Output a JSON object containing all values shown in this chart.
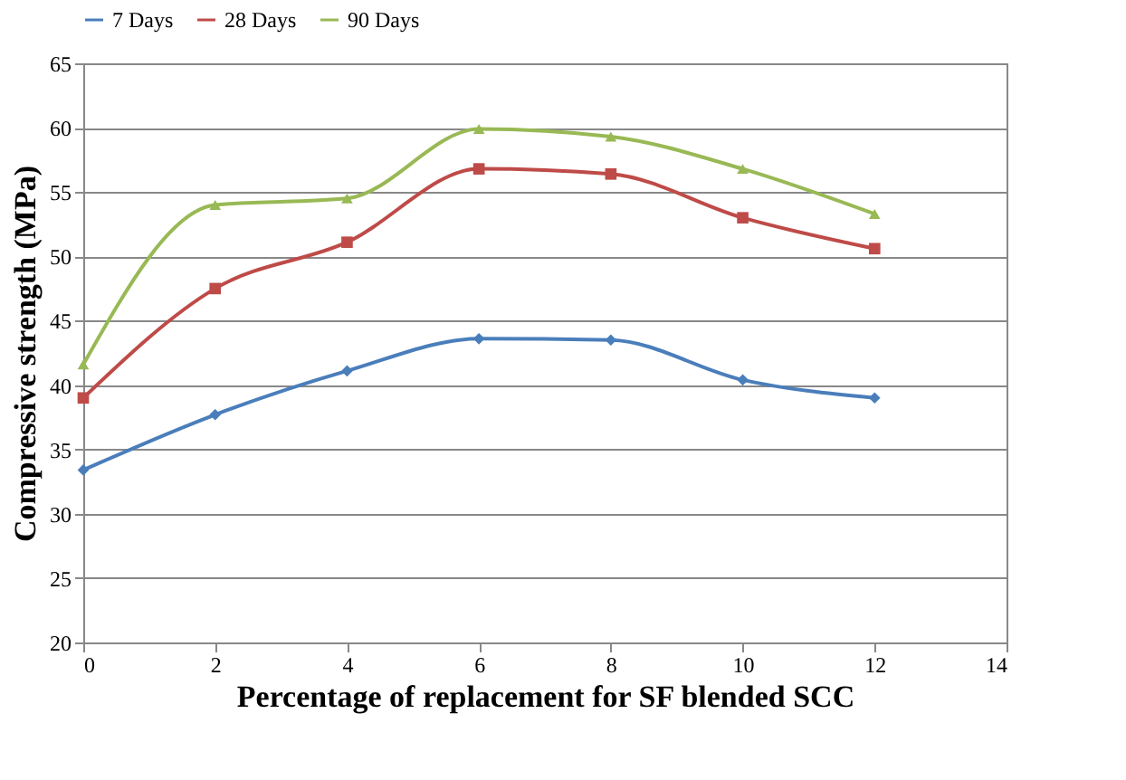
{
  "chart_data": {
    "type": "line",
    "xlabel": "Percentage of replacement for SF blended SCC",
    "ylabel": "Compressive strength (MPa)",
    "x": [
      0,
      2,
      4,
      6,
      8,
      10,
      12
    ],
    "series": [
      {
        "name": "7 Days",
        "color": "#4a7ebb",
        "marker": "diamond",
        "values": [
          33.4,
          37.7,
          41.1,
          43.6,
          43.5,
          40.4,
          39.0
        ]
      },
      {
        "name": "28 Days",
        "color": "#be4b48",
        "marker": "square",
        "values": [
          39.0,
          47.5,
          51.1,
          56.8,
          56.4,
          53.0,
          50.6
        ]
      },
      {
        "name": "90 Days",
        "color": "#98b954",
        "marker": "triangle",
        "values": [
          41.6,
          54.0,
          54.5,
          59.9,
          59.3,
          56.8,
          53.3
        ]
      }
    ],
    "xlim": [
      0,
      14
    ],
    "xticks": [
      0,
      2,
      4,
      6,
      8,
      10,
      12,
      14
    ],
    "ylim": [
      20,
      65
    ],
    "yticks": [
      20,
      25,
      30,
      35,
      40,
      45,
      50,
      55,
      60,
      65
    ],
    "grid": "y",
    "legend": "top",
    "line_style": "solid"
  }
}
